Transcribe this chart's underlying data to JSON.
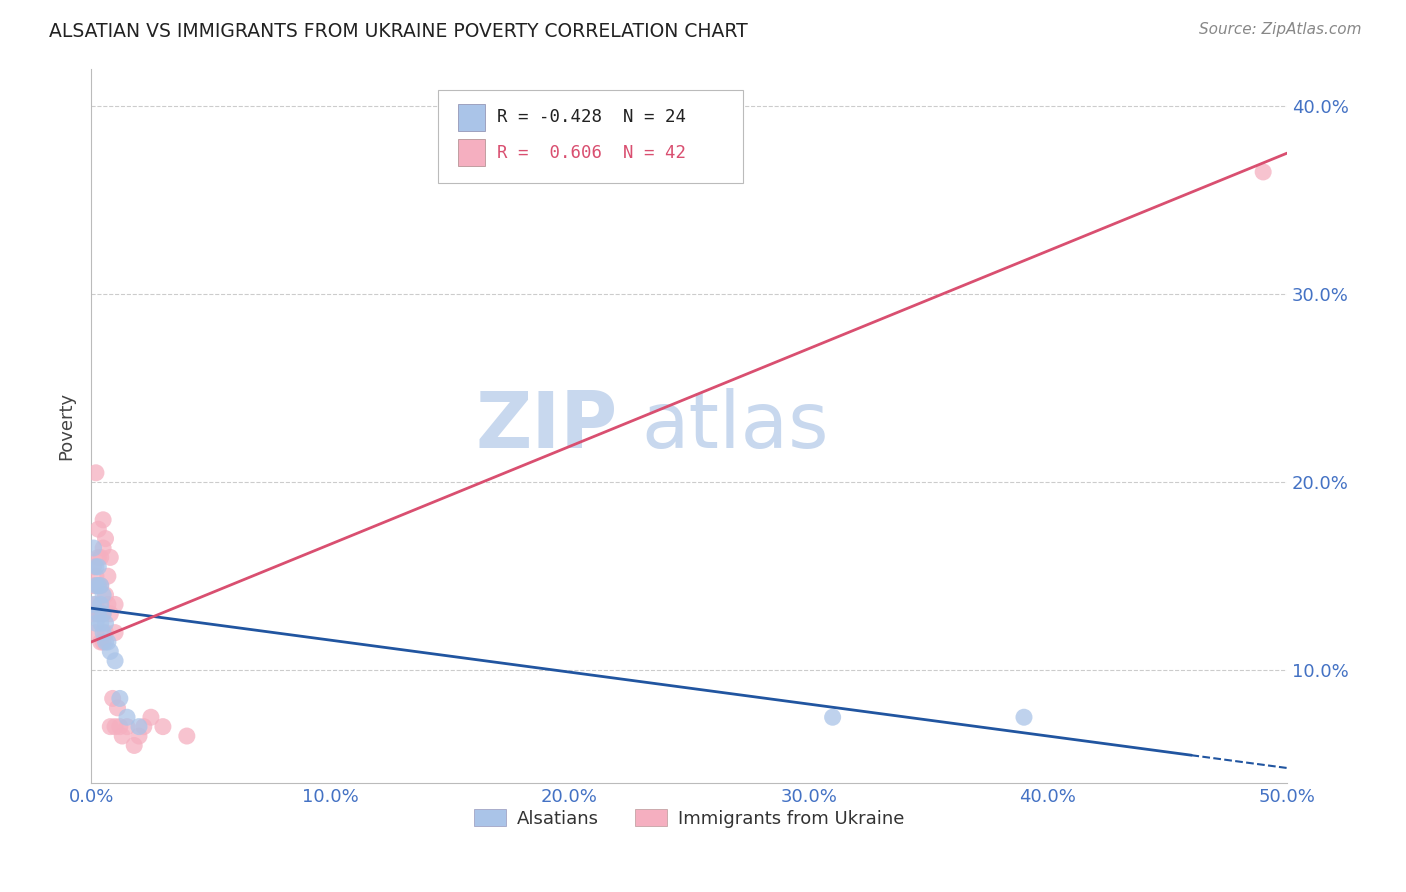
{
  "title": "ALSATIAN VS IMMIGRANTS FROM UKRAINE POVERTY CORRELATION CHART",
  "source": "Source: ZipAtlas.com",
  "tick_color": "#4472c4",
  "ylabel": "Poverty",
  "blue_r": -0.428,
  "blue_n": 24,
  "pink_r": 0.606,
  "pink_n": 42,
  "blue_color": "#aac4e8",
  "pink_color": "#f5afc0",
  "blue_line_color": "#2155a0",
  "pink_line_color": "#d94f70",
  "blue_scatter_x": [
    0.001,
    0.001,
    0.002,
    0.002,
    0.002,
    0.003,
    0.003,
    0.003,
    0.004,
    0.004,
    0.004,
    0.005,
    0.005,
    0.005,
    0.006,
    0.006,
    0.007,
    0.008,
    0.01,
    0.012,
    0.015,
    0.02,
    0.31,
    0.39
  ],
  "blue_scatter_y": [
    0.165,
    0.135,
    0.155,
    0.145,
    0.125,
    0.145,
    0.155,
    0.13,
    0.145,
    0.135,
    0.125,
    0.13,
    0.12,
    0.14,
    0.125,
    0.115,
    0.115,
    0.11,
    0.105,
    0.085,
    0.075,
    0.07,
    0.075,
    0.075
  ],
  "pink_scatter_x": [
    0.001,
    0.001,
    0.001,
    0.002,
    0.002,
    0.002,
    0.002,
    0.003,
    0.003,
    0.003,
    0.003,
    0.004,
    0.004,
    0.004,
    0.004,
    0.005,
    0.005,
    0.005,
    0.005,
    0.006,
    0.006,
    0.006,
    0.007,
    0.007,
    0.008,
    0.008,
    0.008,
    0.009,
    0.01,
    0.01,
    0.01,
    0.011,
    0.012,
    0.013,
    0.015,
    0.018,
    0.02,
    0.022,
    0.025,
    0.03,
    0.04,
    0.49
  ],
  "pink_scatter_y": [
    0.13,
    0.145,
    0.155,
    0.12,
    0.135,
    0.15,
    0.205,
    0.13,
    0.145,
    0.16,
    0.175,
    0.115,
    0.13,
    0.145,
    0.16,
    0.115,
    0.13,
    0.165,
    0.18,
    0.12,
    0.14,
    0.17,
    0.135,
    0.15,
    0.13,
    0.16,
    0.07,
    0.085,
    0.12,
    0.135,
    0.07,
    0.08,
    0.07,
    0.065,
    0.07,
    0.06,
    0.065,
    0.07,
    0.075,
    0.07,
    0.065,
    0.365
  ],
  "blue_line_x0": 0.0,
  "blue_line_x1": 0.5,
  "blue_line_y0": 0.133,
  "blue_line_y1": 0.048,
  "pink_line_x0": 0.0,
  "pink_line_x1": 0.5,
  "pink_line_y0": 0.115,
  "pink_line_y1": 0.375,
  "watermark_zip": "ZIP",
  "watermark_atlas": "atlas",
  "watermark_color_zip": "#c8d8ee",
  "watermark_color_atlas": "#c8d8ee",
  "background_color": "#ffffff",
  "grid_color": "#cccccc",
  "xlim": [
    0.0,
    0.5
  ],
  "ylim": [
    0.04,
    0.42
  ],
  "x_tick_positions": [
    0.0,
    0.1,
    0.2,
    0.3,
    0.4,
    0.5
  ],
  "x_tick_labels": [
    "0.0%",
    "10.0%",
    "20.0%",
    "30.0%",
    "40.0%",
    "50.0%"
  ],
  "y_tick_positions": [
    0.1,
    0.2,
    0.3,
    0.4
  ],
  "y_tick_labels": [
    "10.0%",
    "20.0%",
    "30.0%",
    "40.0%"
  ],
  "legend_blue_text": "R = -0.428  N = 24",
  "legend_pink_text": "R =  0.606  N = 42",
  "bottom_legend_blue": "Alsatians",
  "bottom_legend_pink": "Immigrants from Ukraine"
}
